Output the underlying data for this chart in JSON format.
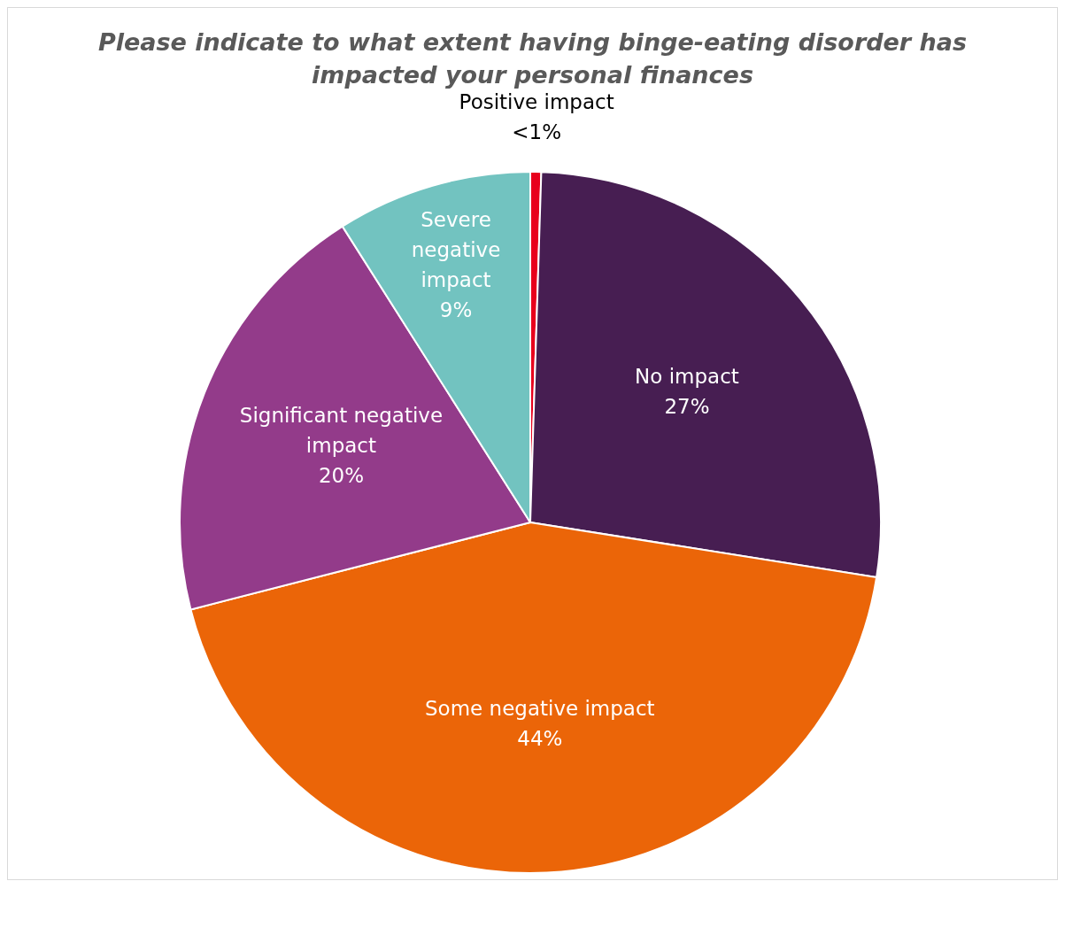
{
  "chart_data": {
    "type": "pie",
    "title": "Please indicate to what extent having binge-eating disorder has impacted your personal finances",
    "categories": [
      "Positive impact",
      "No impact",
      "Some negative impact",
      "Significant negative impact",
      "Severe negative impact"
    ],
    "values": [
      0.5,
      27,
      43.5,
      20,
      9
    ],
    "value_labels": [
      "<1%",
      "27%",
      "44%",
      "20%",
      "9%"
    ],
    "colors": [
      "#e8001c",
      "#471e52",
      "#eb6508",
      "#933b8a",
      "#72c3c0"
    ],
    "legend": false
  }
}
